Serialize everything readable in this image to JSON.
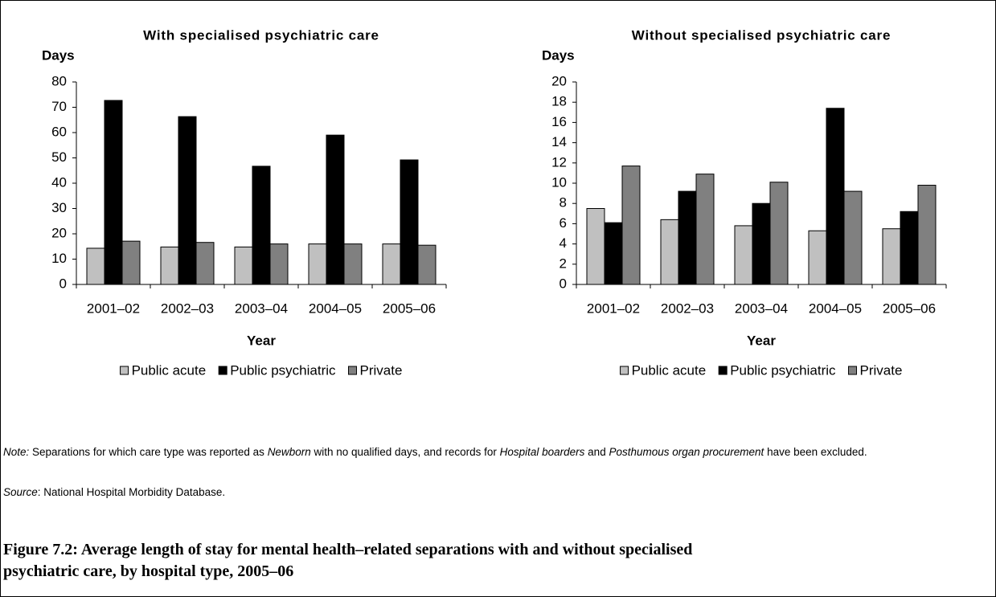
{
  "chart_data": [
    {
      "type": "bar",
      "title": "With specialised psychiatric care",
      "y_label": "Days",
      "x_label": "Year",
      "categories": [
        "2001–02",
        "2002–03",
        "2003–04",
        "2004–05",
        "2005–06"
      ],
      "series": [
        {
          "name": "Public acute",
          "color": "#c0c0c0",
          "values": [
            14.3,
            14.8,
            14.8,
            16.0,
            16.0
          ]
        },
        {
          "name": "Public psychiatric",
          "color": "#000000",
          "values": [
            72.7,
            66.3,
            46.7,
            59.0,
            49.2
          ]
        },
        {
          "name": "Private",
          "color": "#808080",
          "values": [
            17.1,
            16.6,
            16.0,
            16.0,
            15.5
          ]
        }
      ],
      "ylim": [
        0,
        80
      ],
      "yticks": [
        0,
        10,
        20,
        30,
        40,
        50,
        60,
        70,
        80
      ],
      "legend": "bottom"
    },
    {
      "type": "bar",
      "title": "Without specialised psychiatric care",
      "y_label": "Days",
      "x_label": "Year",
      "categories": [
        "2001–02",
        "2002–03",
        "2003–04",
        "2004–05",
        "2005–06"
      ],
      "series": [
        {
          "name": "Public acute",
          "color": "#c0c0c0",
          "values": [
            7.5,
            6.4,
            5.8,
            5.3,
            5.5
          ]
        },
        {
          "name": "Public psychiatric",
          "color": "#000000",
          "values": [
            6.1,
            9.2,
            8.0,
            17.4,
            7.2
          ]
        },
        {
          "name": "Private",
          "color": "#808080",
          "values": [
            11.7,
            10.9,
            10.1,
            9.2,
            9.8
          ]
        }
      ],
      "ylim": [
        0,
        20
      ],
      "yticks": [
        0,
        2,
        4,
        6,
        8,
        10,
        12,
        14,
        16,
        18,
        20
      ],
      "legend": "bottom"
    }
  ],
  "note": [
    "Note:",
    " Separations for which care type was reported as ",
    "Newborn",
    " with no qualified days, and records for ",
    "Hospital boarders",
    " and ",
    "Posthumous organ procurement",
    " have been excluded."
  ],
  "source": [
    "Source",
    ": National Hospital Morbidity Database."
  ],
  "caption": "Figure 7.2: Average length of stay for mental health–related separations with and without specialised psychiatric care, by hospital type, 2005–06"
}
